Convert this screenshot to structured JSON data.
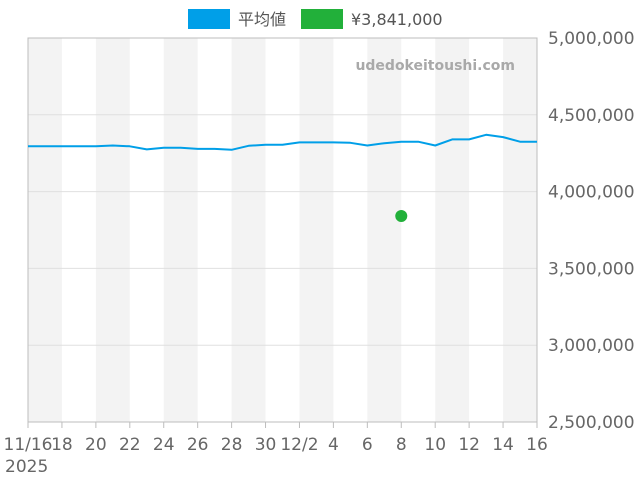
{
  "chart_data": {
    "type": "line",
    "x": [
      "11/16",
      "11/17",
      "11/18",
      "11/19",
      "11/20",
      "11/21",
      "11/22",
      "11/23",
      "11/24",
      "11/25",
      "11/26",
      "11/27",
      "11/28",
      "11/29",
      "11/30",
      "12/1",
      "12/2",
      "12/3",
      "12/4",
      "12/5",
      "12/6",
      "12/7",
      "12/8",
      "12/9",
      "12/10",
      "12/11",
      "12/12",
      "12/13",
      "12/14",
      "12/15",
      "12/16"
    ],
    "x_ticks": [
      "11/16",
      "18",
      "20",
      "22",
      "24",
      "26",
      "28",
      "30",
      "12/2",
      "4",
      "6",
      "8",
      "10",
      "12",
      "14",
      "16"
    ],
    "x_year_label": "2025",
    "y_ticks": [
      "5,000,000",
      "4,500,000",
      "4,000,000",
      "3,500,000",
      "3,000,000",
      "2,500,000"
    ],
    "ylim": [
      2500000,
      5000000
    ],
    "series": [
      {
        "name": "平均値",
        "type": "line",
        "color": "#009fe8",
        "values": [
          4295000,
          4295000,
          4295000,
          4295000,
          4295000,
          4300000,
          4295000,
          4275000,
          4285000,
          4285000,
          4278000,
          4278000,
          4272000,
          4298000,
          4305000,
          4305000,
          4320000,
          4320000,
          4320000,
          4318000,
          4300000,
          4315000,
          4325000,
          4325000,
          4300000,
          4340000,
          4340000,
          4370000,
          4355000,
          4325000,
          4325000
        ]
      },
      {
        "name": "¥3,841,000",
        "type": "point",
        "color": "#22b03a",
        "points": [
          {
            "x": "12/8",
            "y": 3841000
          }
        ]
      }
    ],
    "grid": true,
    "legend_position": "top"
  },
  "watermark": "udedokeitoushi.com",
  "colors": {
    "band": "#f3f3f3",
    "grid": "#e0e0e0",
    "axis": "#bdbdbd"
  }
}
